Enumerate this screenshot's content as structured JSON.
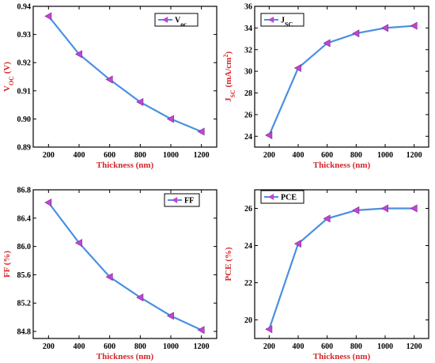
{
  "colors": {
    "line": "#4a90e2",
    "marker": "#c044d6",
    "title": "#d6262a",
    "axis": "#000000"
  },
  "chart_data": [
    {
      "type": "line",
      "x": [
        200,
        400,
        600,
        800,
        1000,
        1200
      ],
      "xlabel": "Thickness (nm)",
      "ylabel": "VOC (V)",
      "ylabel_main": "V",
      "ylabel_sub": "OC",
      "ylabel_rest": " (V)",
      "ylim": [
        0.89,
        0.94
      ],
      "yticks": [
        "0.89",
        "0.90",
        "0.91",
        "0.92",
        "0.93",
        "0.94"
      ],
      "xticks": [
        "200",
        "400",
        "600",
        "800",
        "1000",
        "1200"
      ],
      "series": [
        {
          "name": "VOC",
          "name_main": "V",
          "name_sub": "oc",
          "values": [
            0.9365,
            0.923,
            0.914,
            0.906,
            0.9,
            0.8955
          ]
        }
      ]
    },
    {
      "type": "line",
      "x": [
        200,
        400,
        600,
        800,
        1000,
        1200
      ],
      "xlabel": "Thickness (nm)",
      "ylabel": "JSC (mA/cm2)",
      "ylabel_main": "J",
      "ylabel_sub": "SC",
      "ylabel_rest": " (mA/cm",
      "ylabel_sup": "2",
      "ylabel_end": ")",
      "ylim": [
        23,
        36
      ],
      "yticks": [
        "24",
        "26",
        "28",
        "30",
        "32",
        "34",
        "36"
      ],
      "xticks": [
        "200",
        "400",
        "600",
        "800",
        "1000",
        "1200"
      ],
      "series": [
        {
          "name": "JSC",
          "name_main": "J",
          "name_sub": "SC",
          "values": [
            24.1,
            30.3,
            32.6,
            33.5,
            34.0,
            34.2
          ]
        }
      ]
    },
    {
      "type": "line",
      "x": [
        200,
        400,
        600,
        800,
        1000,
        1200
      ],
      "xlabel": "Thickness (nm)",
      "ylabel": "FF (%)",
      "ylabel_main": "FF (%)",
      "ylim": [
        84.7,
        86.8
      ],
      "yticks": [
        "84.8",
        "85.2",
        "85.6",
        "86.0",
        "86.4",
        "86.8"
      ],
      "xticks": [
        "200",
        "400",
        "600",
        "800",
        "1000",
        "1200"
      ],
      "series": [
        {
          "name": "FF",
          "name_main": "FF",
          "values": [
            86.62,
            86.05,
            85.57,
            85.28,
            85.02,
            84.82
          ]
        }
      ]
    },
    {
      "type": "line",
      "x": [
        200,
        400,
        600,
        800,
        1000,
        1200
      ],
      "xlabel": "Thickness (nm)",
      "ylabel": "PCE (%)",
      "ylabel_main": "PCE (%)",
      "ylim": [
        19.0,
        27.0
      ],
      "yticks": [
        "20",
        "22",
        "24",
        "26"
      ],
      "xticks": [
        "200",
        "400",
        "600",
        "800",
        "1000",
        "1200"
      ],
      "series": [
        {
          "name": "PCE",
          "name_main": "PCE",
          "values": [
            19.5,
            24.1,
            25.45,
            25.9,
            26.0,
            26.0
          ]
        }
      ]
    }
  ]
}
